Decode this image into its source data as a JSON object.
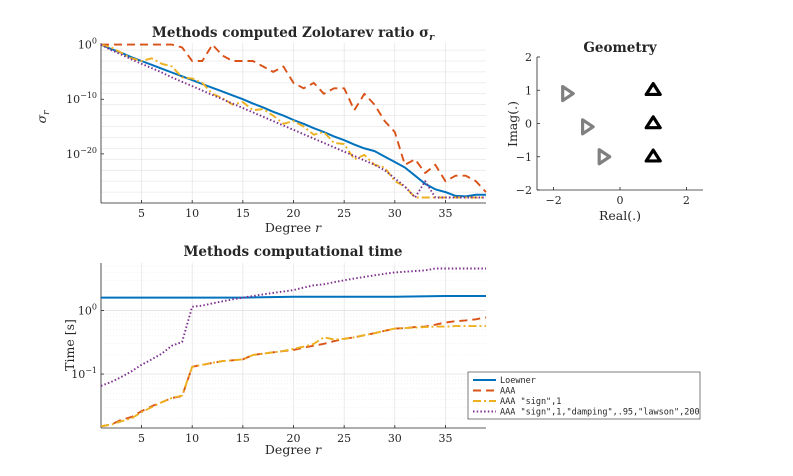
{
  "colors": {
    "loewner": "#0072BD",
    "aaa": "#D95319",
    "aaa_sign": "#EDB120",
    "aaa_lawson": "#7E2F8E",
    "pole_marker": "#808080",
    "zero_marker": "#000000",
    "axis": "#262626",
    "grid": "#dedede"
  },
  "chart_data": [
    {
      "id": "zolotarev",
      "type": "line",
      "title": "Methods computed Zolotarev ratio σ",
      "title_sub": "r",
      "xlabel": "Degree",
      "xlabel_var": "r",
      "ylabel": "σ",
      "ylabel_sub": "r",
      "xscale": "linear",
      "yscale": "log",
      "xlim": [
        1,
        39
      ],
      "ylim_log10": [
        -29,
        0.3
      ],
      "xticks": [
        5,
        10,
        15,
        20,
        25,
        30,
        35
      ],
      "yticks": [
        {
          "exp": 0,
          "base": "10",
          "sup": "0"
        },
        {
          "exp": -10,
          "base": "10",
          "sup": "−10"
        },
        {
          "exp": -20,
          "base": "10",
          "sup": "−20"
        }
      ],
      "grid": true,
      "series": [
        {
          "key": "loewner",
          "name": "Loewner",
          "dash": "solid",
          "x": [
            1,
            2,
            3,
            4,
            5,
            6,
            7,
            8,
            9,
            10,
            11,
            12,
            13,
            14,
            15,
            16,
            17,
            18,
            19,
            20,
            21,
            22,
            23,
            24,
            25,
            26,
            27,
            28,
            29,
            30,
            31,
            32,
            33,
            34,
            35,
            36,
            37,
            38,
            39
          ],
          "y": [
            0,
            -0.8,
            -1.5,
            -2.3,
            -3,
            -3.7,
            -4.4,
            -5.1,
            -5.8,
            -6.5,
            -7.2,
            -7.9,
            -8.6,
            -9.3,
            -10,
            -10.8,
            -11.5,
            -12.3,
            -13,
            -13.8,
            -14.5,
            -15.3,
            -16,
            -16.8,
            -17.5,
            -18.3,
            -19,
            -19.5,
            -20.5,
            -21.5,
            -22.5,
            -24,
            -25.5,
            -26.5,
            -27,
            -27.7,
            -27.8,
            -27.5,
            -27.5
          ]
        },
        {
          "key": "aaa",
          "name": "AAA",
          "dash": "dashed",
          "x": [
            1,
            2,
            3,
            4,
            5,
            6,
            7,
            8,
            9,
            10,
            11,
            12,
            13,
            14,
            15,
            16,
            17,
            18,
            19,
            20,
            21,
            22,
            23,
            24,
            25,
            26,
            27,
            28,
            29,
            30,
            31,
            32,
            33,
            34,
            35,
            36,
            37,
            38,
            39
          ],
          "y": [
            0,
            0,
            0,
            0,
            0,
            0,
            0,
            0,
            -0.5,
            -3,
            -3,
            0,
            -2,
            -3,
            -3,
            -3,
            -4,
            -5,
            -4,
            -7,
            -8,
            -7,
            -9,
            -8,
            -8,
            -12,
            -9,
            -11,
            -14,
            -16,
            -22,
            -21,
            -23.5,
            -22,
            -25,
            -24,
            -24,
            -25,
            -27
          ]
        },
        {
          "key": "aaa_sign",
          "name": "AAA \"sign\",1",
          "dash": "dashdot",
          "x": [
            1,
            2,
            3,
            4,
            5,
            6,
            7,
            8,
            9,
            10,
            11,
            12,
            13,
            14,
            15,
            16,
            17,
            18,
            19,
            20,
            21,
            22,
            23,
            24,
            25,
            26,
            27,
            28,
            29,
            30,
            31,
            32,
            33,
            34,
            35,
            36,
            37,
            38,
            39
          ],
          "y": [
            0,
            -0.5,
            -1.5,
            -2.5,
            -3,
            -2.5,
            -3.5,
            -4,
            -6,
            -6.2,
            -7,
            -9,
            -9.8,
            -11,
            -10.5,
            -12,
            -11.8,
            -13,
            -14.5,
            -14,
            -15,
            -16.5,
            -16,
            -18,
            -18.2,
            -21,
            -20.2,
            -22,
            -22.5,
            -25,
            -26,
            -28,
            -28,
            -28,
            -28,
            -28,
            -28,
            -28,
            -28
          ]
        },
        {
          "key": "aaa_lawson",
          "name": "AAA \"sign\",1,\"damping\",.95,\"lawson\",200",
          "dash": "dotted",
          "x": [
            1,
            2,
            3,
            4,
            5,
            6,
            7,
            8,
            9,
            10,
            11,
            12,
            13,
            14,
            15,
            16,
            17,
            18,
            19,
            20,
            21,
            22,
            23,
            24,
            25,
            26,
            27,
            28,
            29,
            30,
            31,
            32,
            33,
            34,
            35,
            36,
            37,
            38,
            39
          ],
          "y": [
            0,
            -1,
            -1.8,
            -2.7,
            -3.5,
            -4.3,
            -5.1,
            -6,
            -6.8,
            -7.6,
            -8.4,
            -9.2,
            -10,
            -10.8,
            -11.6,
            -12.4,
            -13.2,
            -14,
            -14.8,
            -15.6,
            -16.4,
            -17.2,
            -18,
            -18.8,
            -19.6,
            -20.4,
            -21.2,
            -22,
            -23,
            -24.5,
            -26,
            -28,
            -25,
            -28,
            -28,
            -28,
            -28,
            -28,
            -28
          ]
        }
      ]
    },
    {
      "id": "geometry",
      "type": "scatter",
      "title": "Geometry",
      "xlabel": "Real(.)",
      "ylabel": "Imag(.)",
      "xlim": [
        -2.5,
        2.5
      ],
      "ylim": [
        -2,
        2
      ],
      "xticks": [
        -2,
        0,
        2
      ],
      "yticks": [
        2,
        1,
        0,
        -1,
        -2
      ],
      "grid": false,
      "series": [
        {
          "key": "poles",
          "marker": "triangle-right",
          "points": [
            {
              "x": -1.6,
              "y": 0.9
            },
            {
              "x": -1.0,
              "y": -0.1
            },
            {
              "x": -0.5,
              "y": -1.0
            }
          ]
        },
        {
          "key": "zeros",
          "marker": "triangle-up",
          "points": [
            {
              "x": 1.0,
              "y": 1.0
            },
            {
              "x": 1.0,
              "y": 0.0
            },
            {
              "x": 1.0,
              "y": -1.0
            }
          ]
        }
      ]
    },
    {
      "id": "time",
      "type": "line",
      "title": "Methods computational time",
      "xlabel": "Degree",
      "xlabel_var": "r",
      "ylabel": "Time [s]",
      "xscale": "linear",
      "yscale": "log",
      "xlim": [
        1,
        39
      ],
      "ylim_log10": [
        -1.85,
        0.75
      ],
      "xticks": [
        5,
        10,
        15,
        20,
        25,
        30,
        35
      ],
      "yticks": [
        {
          "exp": 0,
          "base": "10",
          "sup": "0"
        },
        {
          "exp": -1,
          "base": "10",
          "sup": "−1"
        }
      ],
      "grid": true,
      "legend_position": "bottom-right",
      "series": [
        {
          "key": "loewner",
          "name": "Loewner",
          "dash": "solid",
          "x": [
            1,
            5,
            10,
            15,
            20,
            25,
            30,
            35,
            39
          ],
          "y": [
            1.6,
            1.6,
            1.6,
            1.6,
            1.65,
            1.65,
            1.65,
            1.7,
            1.7
          ]
        },
        {
          "key": "aaa",
          "name": "AAA",
          "dash": "dashed",
          "x": [
            1,
            2,
            3,
            4,
            5,
            6,
            7,
            8,
            9,
            10,
            11,
            12,
            13,
            14,
            15,
            16,
            17,
            18,
            19,
            20,
            21,
            22,
            23,
            24,
            25,
            26,
            27,
            28,
            29,
            30,
            31,
            32,
            33,
            34,
            35,
            36,
            37,
            38,
            39
          ],
          "y": [
            0.015,
            0.016,
            0.019,
            0.021,
            0.026,
            0.031,
            0.036,
            0.042,
            0.045,
            0.13,
            0.14,
            0.15,
            0.16,
            0.165,
            0.17,
            0.2,
            0.21,
            0.22,
            0.23,
            0.24,
            0.26,
            0.28,
            0.3,
            0.33,
            0.36,
            0.38,
            0.41,
            0.44,
            0.48,
            0.52,
            0.53,
            0.55,
            0.56,
            0.6,
            0.65,
            0.68,
            0.7,
            0.73,
            0.78
          ]
        },
        {
          "key": "aaa_sign",
          "name": "AAA \"sign\",1",
          "dash": "dashdot",
          "x": [
            1,
            2,
            3,
            4,
            5,
            6,
            7,
            8,
            9,
            10,
            11,
            12,
            13,
            14,
            15,
            16,
            17,
            18,
            19,
            20,
            21,
            22,
            23,
            24,
            25,
            26,
            27,
            28,
            29,
            30,
            31,
            32,
            33,
            34,
            35,
            36,
            37,
            38,
            39
          ],
          "y": [
            0.015,
            0.016,
            0.018,
            0.02,
            0.025,
            0.03,
            0.036,
            0.042,
            0.046,
            0.13,
            0.14,
            0.15,
            0.16,
            0.165,
            0.17,
            0.2,
            0.21,
            0.22,
            0.23,
            0.25,
            0.27,
            0.3,
            0.38,
            0.35,
            0.36,
            0.38,
            0.41,
            0.44,
            0.48,
            0.52,
            0.53,
            0.54,
            0.55,
            0.56,
            0.56,
            0.57,
            0.57,
            0.57,
            0.57
          ]
        },
        {
          "key": "aaa_lawson",
          "name": "AAA \"sign\",1,\"damping\",.95,\"lawson\",200",
          "dash": "dotted",
          "x": [
            1,
            2,
            3,
            4,
            5,
            6,
            7,
            8,
            9,
            10,
            11,
            12,
            13,
            14,
            15,
            16,
            17,
            18,
            19,
            20,
            21,
            22,
            23,
            24,
            25,
            26,
            27,
            28,
            29,
            30,
            31,
            32,
            33,
            34,
            35,
            36,
            37,
            38,
            39
          ],
          "y": [
            0.065,
            0.075,
            0.09,
            0.11,
            0.14,
            0.17,
            0.21,
            0.28,
            0.32,
            1.15,
            1.2,
            1.3,
            1.4,
            1.5,
            1.6,
            1.7,
            1.8,
            1.9,
            2.0,
            2.1,
            2.3,
            2.5,
            2.6,
            2.8,
            3.0,
            3.2,
            3.4,
            3.6,
            3.8,
            4.0,
            4.1,
            4.2,
            4.3,
            4.6,
            4.6,
            4.6,
            4.6,
            4.6,
            4.6
          ]
        }
      ]
    }
  ]
}
